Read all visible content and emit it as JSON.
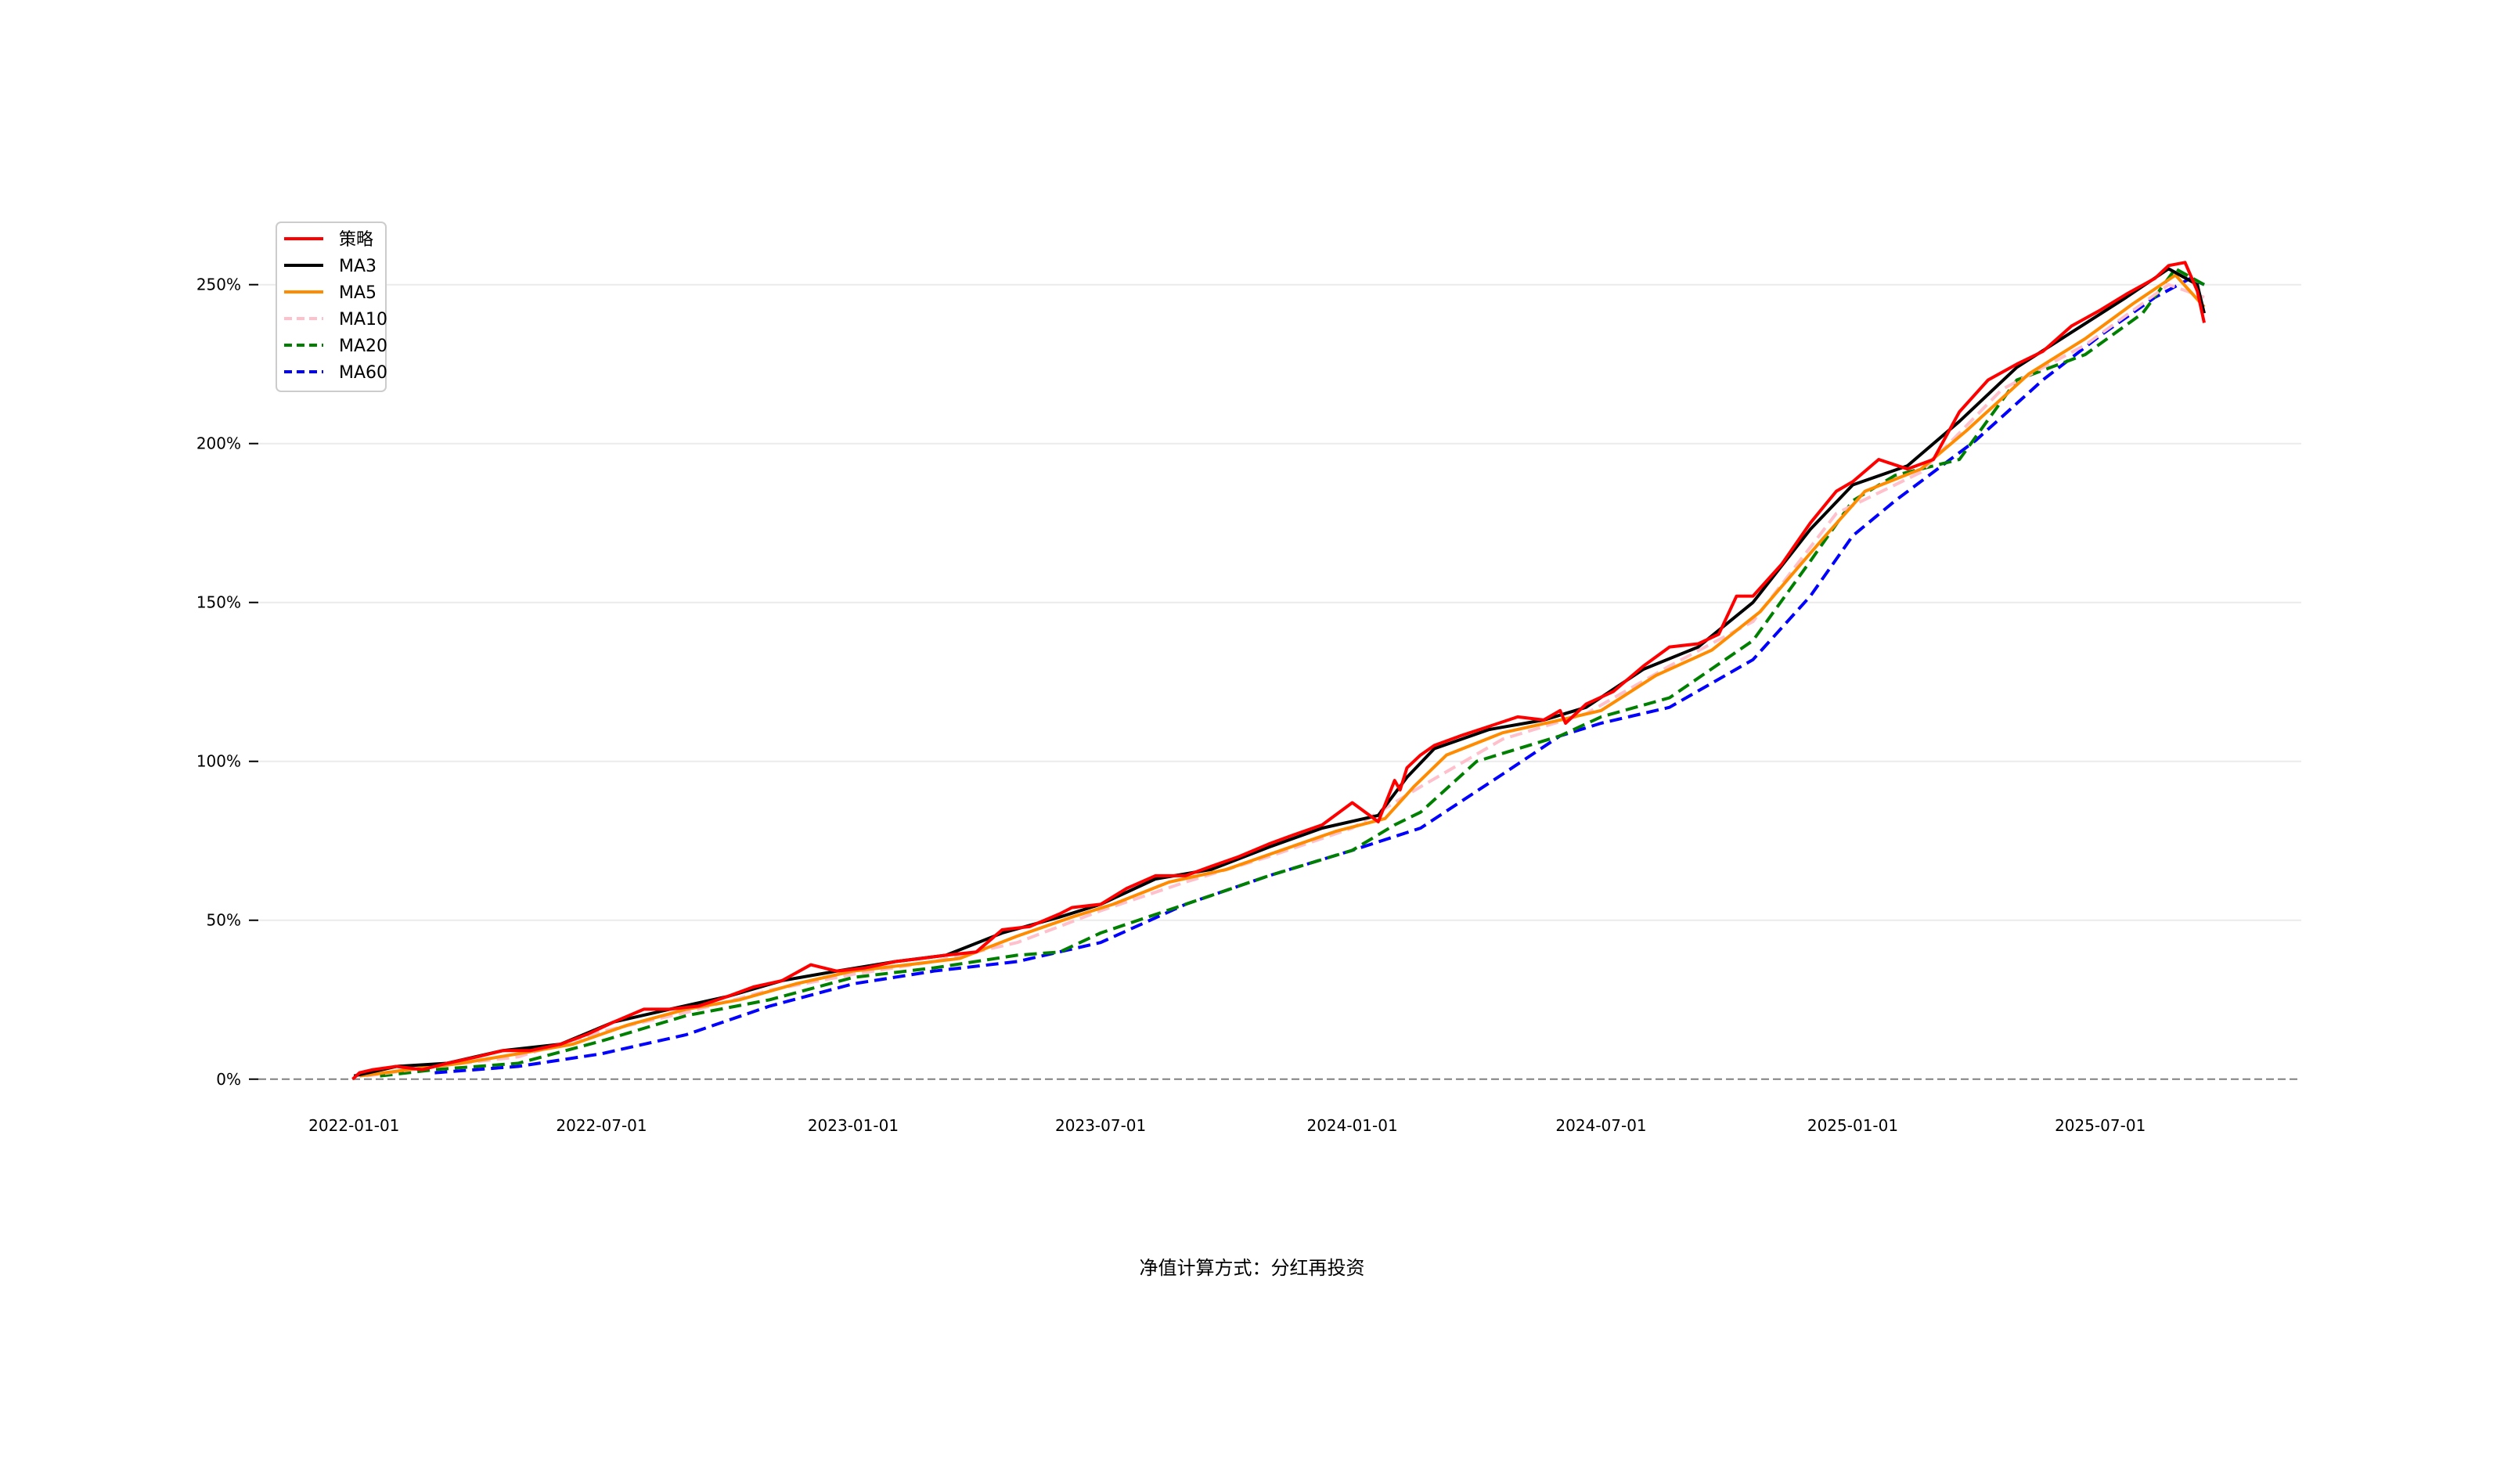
{
  "chart_data": {
    "type": "line",
    "title": "",
    "xlabel": "",
    "ylabel": "",
    "footnote": "净值计算方式：分红再投资",
    "x_ticks": [
      "2022-01-01",
      "2022-07-01",
      "2023-01-01",
      "2023-07-01",
      "2024-01-01",
      "2024-07-01",
      "2025-01-01",
      "2025-07-01"
    ],
    "y_ticks": [
      "0%",
      "50%",
      "100%",
      "150%",
      "200%",
      "250%"
    ],
    "x_range": [
      "2021-10-23",
      "2025-11-25"
    ],
    "ylim": [
      -0.04,
      2.78
    ],
    "grid": "y",
    "zero_line": true,
    "legend_position": "upper-left",
    "series": [
      {
        "name": "策略",
        "color": "#ff0000",
        "style": "solid",
        "x": [
          "2021-12-31",
          "2022-01-05",
          "2022-01-15",
          "2022-02-01",
          "2022-02-20",
          "2022-03-10",
          "2022-04-01",
          "2022-04-20",
          "2022-05-10",
          "2022-06-01",
          "2022-06-20",
          "2022-07-10",
          "2022-08-01",
          "2022-08-20",
          "2022-09-10",
          "2022-10-01",
          "2022-10-20",
          "2022-11-10",
          "2022-12-01",
          "2022-12-20",
          "2023-01-10",
          "2023-02-01",
          "2023-02-20",
          "2023-03-10",
          "2023-04-01",
          "2023-04-20",
          "2023-05-10",
          "2023-06-01",
          "2023-06-10",
          "2023-07-01",
          "2023-07-20",
          "2023-08-10",
          "2023-09-01",
          "2023-09-20",
          "2023-10-10",
          "2023-11-01",
          "2023-11-20",
          "2023-12-10",
          "2024-01-01",
          "2024-01-20",
          "2024-02-01",
          "2024-02-05",
          "2024-02-10",
          "2024-02-20",
          "2024-03-01",
          "2024-03-20",
          "2024-04-10",
          "2024-05-01",
          "2024-05-20",
          "2024-06-01",
          "2024-06-05",
          "2024-06-20",
          "2024-07-10",
          "2024-08-01",
          "2024-08-20",
          "2024-09-10",
          "2024-09-25",
          "2024-10-08",
          "2024-10-20",
          "2024-11-10",
          "2024-12-01",
          "2024-12-20",
          "2025-01-01",
          "2025-01-20",
          "2025-02-10",
          "2025-03-01",
          "2025-03-20",
          "2025-04-10",
          "2025-05-01",
          "2025-05-20",
          "2025-06-10",
          "2025-07-01",
          "2025-07-20",
          "2025-08-10",
          "2025-08-20",
          "2025-09-01",
          "2025-09-10",
          "2025-09-15"
        ],
        "values": [
          0.0,
          0.02,
          0.03,
          0.04,
          0.03,
          0.05,
          0.07,
          0.09,
          0.09,
          0.11,
          0.14,
          0.18,
          0.22,
          0.22,
          0.23,
          0.26,
          0.29,
          0.31,
          0.36,
          0.34,
          0.35,
          0.37,
          0.38,
          0.39,
          0.4,
          0.47,
          0.48,
          0.52,
          0.54,
          0.55,
          0.6,
          0.64,
          0.64,
          0.67,
          0.7,
          0.74,
          0.77,
          0.8,
          0.87,
          0.81,
          0.94,
          0.91,
          0.98,
          1.02,
          1.05,
          1.08,
          1.11,
          1.14,
          1.13,
          1.16,
          1.12,
          1.18,
          1.22,
          1.3,
          1.36,
          1.37,
          1.4,
          1.52,
          1.52,
          1.62,
          1.75,
          1.85,
          1.88,
          1.95,
          1.92,
          1.95,
          2.1,
          2.2,
          2.25,
          2.29,
          2.37,
          2.42,
          2.47,
          2.52,
          2.56,
          2.57,
          2.48,
          2.38
        ]
      },
      {
        "name": "MA3",
        "color": "#000000",
        "style": "solid",
        "x": [
          "2022-01-01",
          "2022-02-01",
          "2022-03-10",
          "2022-04-20",
          "2022-06-01",
          "2022-07-10",
          "2022-08-20",
          "2022-10-01",
          "2022-11-10",
          "2022-12-20",
          "2023-02-01",
          "2023-03-10",
          "2023-04-20",
          "2023-06-01",
          "2023-07-01",
          "2023-08-10",
          "2023-09-20",
          "2023-11-01",
          "2023-12-10",
          "2024-01-20",
          "2024-02-10",
          "2024-03-01",
          "2024-04-10",
          "2024-05-20",
          "2024-06-20",
          "2024-08-01",
          "2024-09-10",
          "2024-10-20",
          "2024-12-01",
          "2025-01-01",
          "2025-02-10",
          "2025-03-20",
          "2025-05-01",
          "2025-06-10",
          "2025-07-20",
          "2025-08-20",
          "2025-09-10",
          "2025-09-15"
        ],
        "values": [
          0.01,
          0.04,
          0.05,
          0.09,
          0.11,
          0.18,
          0.22,
          0.26,
          0.31,
          0.34,
          0.37,
          0.39,
          0.46,
          0.51,
          0.55,
          0.63,
          0.66,
          0.73,
          0.79,
          0.83,
          0.95,
          1.04,
          1.1,
          1.13,
          1.17,
          1.29,
          1.36,
          1.5,
          1.73,
          1.87,
          1.93,
          2.07,
          2.24,
          2.35,
          2.46,
          2.55,
          2.5,
          2.41
        ]
      },
      {
        "name": "MA5",
        "color": "#ff8c00",
        "style": "solid",
        "x": [
          "2022-01-05",
          "2022-02-10",
          "2022-03-20",
          "2022-05-01",
          "2022-06-10",
          "2022-07-20",
          "2022-09-01",
          "2022-10-10",
          "2022-11-20",
          "2023-01-01",
          "2023-02-10",
          "2023-03-20",
          "2023-05-01",
          "2023-06-10",
          "2023-07-10",
          "2023-08-20",
          "2023-10-01",
          "2023-11-10",
          "2023-12-20",
          "2024-01-25",
          "2024-02-15",
          "2024-03-10",
          "2024-04-20",
          "2024-06-01",
          "2024-07-01",
          "2024-08-10",
          "2024-09-20",
          "2024-10-25",
          "2024-12-10",
          "2025-01-10",
          "2025-02-20",
          "2025-03-25",
          "2025-05-10",
          "2025-06-20",
          "2025-07-25",
          "2025-08-25",
          "2025-09-15"
        ],
        "values": [
          0.01,
          0.03,
          0.05,
          0.08,
          0.11,
          0.17,
          0.22,
          0.25,
          0.3,
          0.34,
          0.36,
          0.38,
          0.45,
          0.51,
          0.55,
          0.62,
          0.66,
          0.72,
          0.78,
          0.82,
          0.92,
          1.02,
          1.09,
          1.13,
          1.16,
          1.27,
          1.35,
          1.47,
          1.7,
          1.85,
          1.92,
          2.04,
          2.22,
          2.33,
          2.44,
          2.53,
          2.43
        ]
      },
      {
        "name": "MA10",
        "color": "#ffc0cb",
        "style": "dashed",
        "x": [
          "2022-01-10",
          "2022-03-01",
          "2022-05-01",
          "2022-07-01",
          "2022-09-01",
          "2022-11-01",
          "2023-01-01",
          "2023-03-01",
          "2023-05-01",
          "2023-07-01",
          "2023-09-01",
          "2023-11-01",
          "2024-01-01",
          "2024-02-20",
          "2024-04-20",
          "2024-06-20",
          "2024-08-20",
          "2024-10-20",
          "2024-12-20",
          "2025-02-20",
          "2025-04-20",
          "2025-06-20",
          "2025-08-20",
          "2025-09-15"
        ],
        "values": [
          0.01,
          0.04,
          0.07,
          0.15,
          0.21,
          0.28,
          0.33,
          0.37,
          0.43,
          0.53,
          0.62,
          0.7,
          0.79,
          0.92,
          1.07,
          1.15,
          1.3,
          1.44,
          1.78,
          1.91,
          2.17,
          2.31,
          2.5,
          2.46
        ]
      },
      {
        "name": "MA20",
        "color": "#008000",
        "style": "dashed",
        "x": [
          "2022-01-20",
          "2022-03-01",
          "2022-05-01",
          "2022-07-01",
          "2022-09-01",
          "2022-11-01",
          "2023-01-01",
          "2023-03-01",
          "2023-05-01",
          "2023-06-01",
          "2023-07-01",
          "2023-09-01",
          "2023-11-01",
          "2024-01-01",
          "2024-02-01",
          "2024-02-20",
          "2024-04-01",
          "2024-06-01",
          "2024-07-01",
          "2024-08-20",
          "2024-10-20",
          "2024-12-01",
          "2025-01-01",
          "2025-02-01",
          "2025-03-20",
          "2025-05-01",
          "2025-06-20",
          "2025-08-01",
          "2025-08-25",
          "2025-09-15"
        ],
        "values": [
          0.01,
          0.03,
          0.05,
          0.12,
          0.2,
          0.25,
          0.32,
          0.35,
          0.39,
          0.4,
          0.46,
          0.55,
          0.64,
          0.72,
          0.8,
          0.84,
          1.0,
          1.08,
          1.14,
          1.2,
          1.38,
          1.63,
          1.82,
          1.9,
          1.95,
          2.2,
          2.28,
          2.41,
          2.55,
          2.5
        ]
      },
      {
        "name": "MA60",
        "color": "#0000ff",
        "style": "dashed",
        "x": [
          "2022-03-01",
          "2022-05-01",
          "2022-07-01",
          "2022-09-01",
          "2022-11-01",
          "2023-01-01",
          "2023-03-01",
          "2023-05-01",
          "2023-07-01",
          "2023-09-01",
          "2023-11-01",
          "2024-01-01",
          "2024-02-20",
          "2024-04-20",
          "2024-06-01",
          "2024-07-01",
          "2024-08-20",
          "2024-10-20",
          "2024-12-01",
          "2025-01-01",
          "2025-02-01",
          "2025-04-01",
          "2025-05-20",
          "2025-07-01",
          "2025-08-10",
          "2025-09-05",
          "2025-09-15"
        ],
        "values": [
          0.02,
          0.04,
          0.08,
          0.14,
          0.23,
          0.3,
          0.34,
          0.37,
          0.43,
          0.55,
          0.64,
          0.72,
          0.79,
          0.96,
          1.08,
          1.12,
          1.17,
          1.32,
          1.52,
          1.71,
          1.82,
          2.01,
          2.2,
          2.34,
          2.46,
          2.52,
          2.5
        ]
      }
    ]
  }
}
